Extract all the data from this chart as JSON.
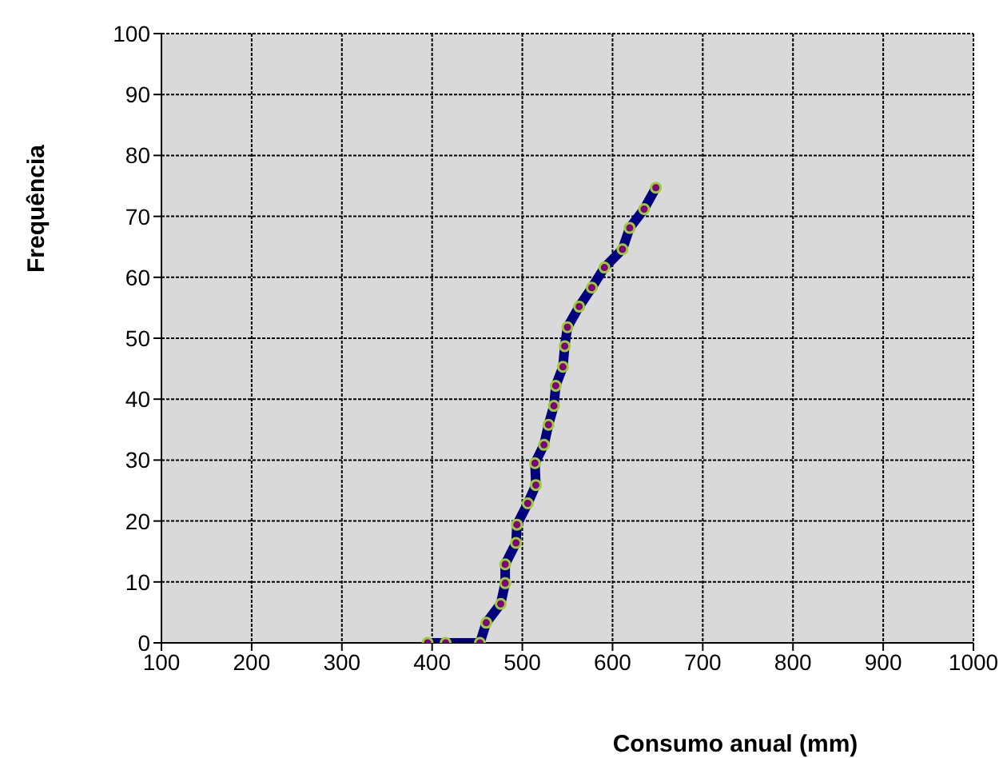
{
  "chart_data": {
    "type": "line",
    "xlabel": "Consumo anual (mm)",
    "ylabel": "Frequência",
    "series": [
      {
        "color": "#000080",
        "x": [
          395,
          415,
          453,
          460,
          476,
          481,
          481,
          493,
          494,
          506,
          515,
          514,
          524,
          529,
          535,
          537,
          545,
          547,
          550,
          563,
          577,
          591,
          611,
          619,
          635,
          648
        ],
        "values": [
          0,
          0,
          0,
          3.3,
          6.4,
          9.8,
          12.9,
          16.4,
          19.4,
          22.9,
          25.9,
          29.5,
          32.5,
          35.8,
          38.9,
          42.2,
          45.3,
          48.7,
          51.8,
          55.2,
          58.3,
          61.6,
          64.6,
          68.1,
          71.2,
          74.7
        ]
      }
    ],
    "xlim": [
      100,
      1000
    ],
    "xticks": [
      100,
      200,
      300,
      400,
      500,
      600,
      700,
      800,
      900,
      1000
    ],
    "ylim": [
      0,
      100
    ],
    "yticks": [
      0,
      10,
      20,
      30,
      40,
      50,
      60,
      70,
      80,
      90,
      100
    ],
    "grid": true,
    "marker": "circle",
    "line_style": "solid"
  }
}
